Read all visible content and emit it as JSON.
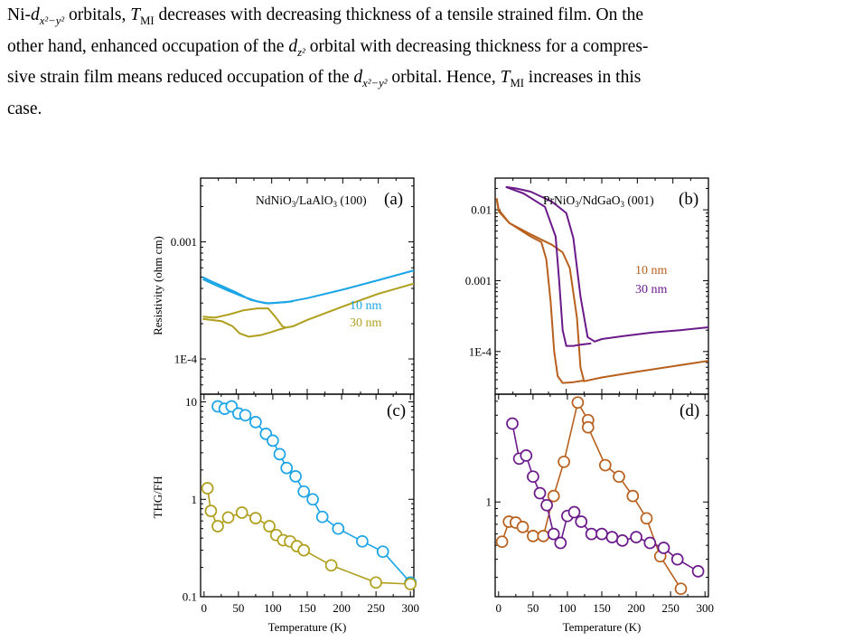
{
  "paragraph": {
    "line1": [
      "Ni-",
      "d",
      "x²−y²",
      " orbitals, ",
      "T",
      "MI",
      " decreases with decreasing thickness of a tensile strained film. On the"
    ],
    "line2": [
      "other hand, enhanced occupation of the ",
      "d",
      "z²",
      " orbital with decreasing thickness for a compres-"
    ],
    "line3": [
      "sive strain film means reduced occupation of the ",
      "d",
      "x²−y²",
      " orbital. Hence, ",
      "T",
      "MI",
      " increases in this"
    ],
    "line4": "case."
  },
  "figure": {
    "colors": {
      "blue": "#1ba4e6",
      "olive": "#b09f1c",
      "orange": "#b8601e",
      "purple": "#6b1a8a"
    },
    "labels": {
      "a_title": "NdNiO3/LaAlO3 (100)",
      "b_title": "PrNiO3/NdGaO3 (001)",
      "a_tag": "(a)",
      "b_tag": "(b)",
      "c_tag": "(c)",
      "d_tag": "(d)",
      "legend_a_10": "10 nm",
      "legend_a_30": "30 nm",
      "legend_b_10": "10 nm",
      "legend_b_30": "30 nm",
      "ylabel_top": "Resistivity (ohm cm)",
      "ylabel_bottom": "THG/FH",
      "xlabel_left": "Temperature (K)",
      "xlabel_right": "Temperature (K)"
    }
  },
  "chart_data": [
    {
      "panel": "(a)",
      "type": "line",
      "title": "NdNiO3/LaAlO3 (100)",
      "xlim": [
        0,
        300
      ],
      "yscale": "log",
      "ylim": [
        5e-05,
        0.0035
      ],
      "ylabel": "Resistivity (ohm cm)",
      "yticks": [
        {
          "value": 0.001,
          "label": "0.001"
        },
        {
          "value": 0.0001,
          "label": "1E-4"
        }
      ],
      "series": [
        {
          "name": "10 nm",
          "color": "#1ba4e6",
          "cooling": [
            [
              300,
              0.00057
            ],
            [
              250,
              0.00047
            ],
            [
              200,
              0.00039
            ],
            [
              150,
              0.00033
            ],
            [
              120,
              0.000305
            ],
            [
              100,
              0.0003
            ],
            [
              90,
              0.0003
            ],
            [
              70,
              0.00032
            ],
            [
              50,
              0.00037
            ],
            [
              30,
              0.00042
            ],
            [
              15,
              0.00046
            ],
            [
              3,
              0.0005
            ]
          ],
          "warming": [
            [
              3,
              0.00048
            ],
            [
              20,
              0.00043
            ],
            [
              40,
              0.00038
            ],
            [
              60,
              0.00034
            ],
            [
              80,
              0.00031
            ],
            [
              95,
              0.000298
            ],
            [
              110,
              0.000303
            ],
            [
              130,
              0.00031
            ]
          ]
        },
        {
          "name": "30 nm",
          "color": "#b09f1c",
          "cooling": [
            [
              300,
              0.00044
            ],
            [
              250,
              0.00036
            ],
            [
              200,
              0.00028
            ],
            [
              150,
              0.000215
            ],
            [
              130,
              0.00019
            ],
            [
              120,
              0.000185
            ],
            [
              115,
              0.00019
            ],
            [
              105,
              0.00023
            ],
            [
              95,
              0.00027
            ],
            [
              80,
              0.00027
            ],
            [
              60,
              0.00026
            ],
            [
              40,
              0.00024
            ],
            [
              20,
              0.000225
            ],
            [
              3,
              0.00023
            ]
          ],
          "warming": [
            [
              3,
              0.00022
            ],
            [
              15,
              0.000215
            ],
            [
              30,
              0.00021
            ],
            [
              45,
              0.00019
            ],
            [
              55,
              0.000165
            ],
            [
              68,
              0.000155
            ],
            [
              85,
              0.00016
            ],
            [
              100,
              0.00017
            ],
            [
              110,
              0.000178
            ],
            [
              120,
              0.000185
            ]
          ]
        }
      ]
    },
    {
      "panel": "(b)",
      "type": "line",
      "title": "PrNiO3/NdGaO3 (001)",
      "xlim": [
        0,
        300
      ],
      "yscale": "log",
      "ylim": [
        2.5e-05,
        0.028
      ],
      "yticks": [
        {
          "value": 0.01,
          "label": "0.01"
        },
        {
          "value": 0.001,
          "label": "0.001"
        },
        {
          "value": 0.0001,
          "label": "1E-4"
        }
      ],
      "series": [
        {
          "name": "10 nm",
          "color": "#b8601e",
          "cooling": [
            [
              300,
              7.4e-05
            ],
            [
              250,
              6.2e-05
            ],
            [
              200,
              5.2e-05
            ],
            [
              150,
              4.3e-05
            ],
            [
              125,
              3.8e-05
            ],
            [
              120,
              6e-05
            ],
            [
              115,
              0.0003
            ],
            [
              105,
              0.0015
            ],
            [
              95,
              0.0025
            ],
            [
              80,
              0.0032
            ],
            [
              50,
              0.0045
            ],
            [
              20,
              0.0065
            ],
            [
              5,
              0.0095
            ],
            [
              2,
              0.0145
            ]
          ],
          "warming": [
            [
              2,
              0.0145
            ],
            [
              5,
              0.01
            ],
            [
              20,
              0.0065
            ],
            [
              50,
              0.0042
            ],
            [
              65,
              0.0035
            ],
            [
              72,
              0.002
            ],
            [
              78,
              0.0005
            ],
            [
              83,
              0.0001
            ],
            [
              88,
              4.5e-05
            ],
            [
              95,
              3.6e-05
            ],
            [
              110,
              3.7e-05
            ],
            [
              125,
              3.9e-05
            ]
          ]
        },
        {
          "name": "30 nm",
          "color": "#6b1a8a",
          "cooling": [
            [
              300,
              0.00022
            ],
            [
              260,
              0.0002
            ],
            [
              220,
              0.000185
            ],
            [
              180,
              0.000165
            ],
            [
              150,
              0.00015
            ],
            [
              140,
              0.000138
            ],
            [
              130,
              0.00016
            ],
            [
              120,
              0.0006
            ],
            [
              110,
              0.004
            ],
            [
              100,
              0.009
            ],
            [
              80,
              0.013
            ],
            [
              50,
              0.018
            ],
            [
              30,
              0.02
            ],
            [
              15,
              0.021
            ]
          ],
          "warming": [
            [
              15,
              0.021
            ],
            [
              40,
              0.017
            ],
            [
              70,
              0.011
            ],
            [
              85,
              0.0042
            ],
            [
              90,
              0.001
            ],
            [
              95,
              0.0002
            ],
            [
              100,
              0.00012
            ],
            [
              110,
              0.00012
            ],
            [
              120,
              0.000125
            ],
            [
              135,
              0.00013
            ]
          ]
        }
      ]
    },
    {
      "panel": "(c)",
      "type": "scatter",
      "xlim": [
        -5,
        305
      ],
      "xticks": [
        0,
        50,
        100,
        150,
        200,
        250,
        300
      ],
      "xlabel": "Temperature (K)",
      "ylabel": "THG/FH",
      "yscale": "log",
      "ylim": [
        0.1,
        12
      ],
      "yticks": [
        {
          "value": 10,
          "label": "10"
        },
        {
          "value": 1,
          "label": "1"
        },
        {
          "value": 0.1,
          "label": "0.1"
        }
      ],
      "series": [
        {
          "name": "10 nm",
          "color": "#1ba4e6",
          "points": [
            [
              20,
              9.0
            ],
            [
              30,
              8.5
            ],
            [
              40,
              9.0
            ],
            [
              50,
              7.6
            ],
            [
              60,
              7.3
            ],
            [
              75,
              6.2
            ],
            [
              90,
              4.7
            ],
            [
              100,
              4.0
            ],
            [
              110,
              2.9
            ],
            [
              120,
              2.1
            ],
            [
              133,
              1.72
            ],
            [
              145,
              1.2
            ],
            [
              158,
              1.0
            ],
            [
              172,
              0.66
            ],
            [
              195,
              0.5
            ],
            [
              230,
              0.37
            ],
            [
              260,
              0.29
            ],
            [
              300,
              0.14
            ]
          ]
        },
        {
          "name": "30 nm",
          "color": "#b09f1c",
          "points": [
            [
              5,
              1.3
            ],
            [
              10,
              0.76
            ],
            [
              20,
              0.53
            ],
            [
              35,
              0.65
            ],
            [
              55,
              0.73
            ],
            [
              75,
              0.64
            ],
            [
              95,
              0.53
            ],
            [
              105,
              0.43
            ],
            [
              115,
              0.38
            ],
            [
              125,
              0.37
            ],
            [
              135,
              0.33
            ],
            [
              145,
              0.3
            ],
            [
              185,
              0.21
            ],
            [
              250,
              0.14
            ],
            [
              300,
              0.135
            ]
          ]
        }
      ]
    },
    {
      "panel": "(d)",
      "type": "scatter",
      "xlim": [
        -5,
        305
      ],
      "xticks": [
        0,
        50,
        100,
        150,
        200,
        250,
        300
      ],
      "xlabel": "Temperature (K)",
      "yscale": "log",
      "ylim": [
        0.22,
        5.6
      ],
      "yticks": [
        {
          "value": 1,
          "label": "1"
        }
      ],
      "series": [
        {
          "name": "10 nm",
          "color": "#b8601e",
          "points": [
            [
              5,
              0.53
            ],
            [
              15,
              0.73
            ],
            [
              25,
              0.72
            ],
            [
              35,
              0.67
            ],
            [
              50,
              0.58
            ],
            [
              65,
              0.58
            ],
            [
              80,
              1.1
            ],
            [
              95,
              1.9
            ],
            [
              115,
              4.9
            ],
            [
              130,
              3.7
            ],
            [
              130,
              3.3
            ],
            [
              155,
              1.8
            ],
            [
              175,
              1.5
            ],
            [
              195,
              1.1
            ],
            [
              215,
              0.77
            ],
            [
              235,
              0.42
            ],
            [
              265,
              0.25
            ]
          ]
        },
        {
          "name": "30 nm",
          "color": "#6b1a8a",
          "points": [
            [
              20,
              3.5
            ],
            [
              30,
              2.0
            ],
            [
              40,
              2.1
            ],
            [
              50,
              1.5
            ],
            [
              60,
              1.15
            ],
            [
              70,
              0.95
            ],
            [
              80,
              0.6
            ],
            [
              90,
              0.52
            ],
            [
              100,
              0.8
            ],
            [
              110,
              0.85
            ],
            [
              120,
              0.73
            ],
            [
              135,
              0.6
            ],
            [
              150,
              0.6
            ],
            [
              165,
              0.57
            ],
            [
              180,
              0.54
            ],
            [
              200,
              0.57
            ],
            [
              220,
              0.52
            ],
            [
              240,
              0.48
            ],
            [
              260,
              0.4
            ],
            [
              290,
              0.33
            ]
          ]
        }
      ]
    }
  ]
}
